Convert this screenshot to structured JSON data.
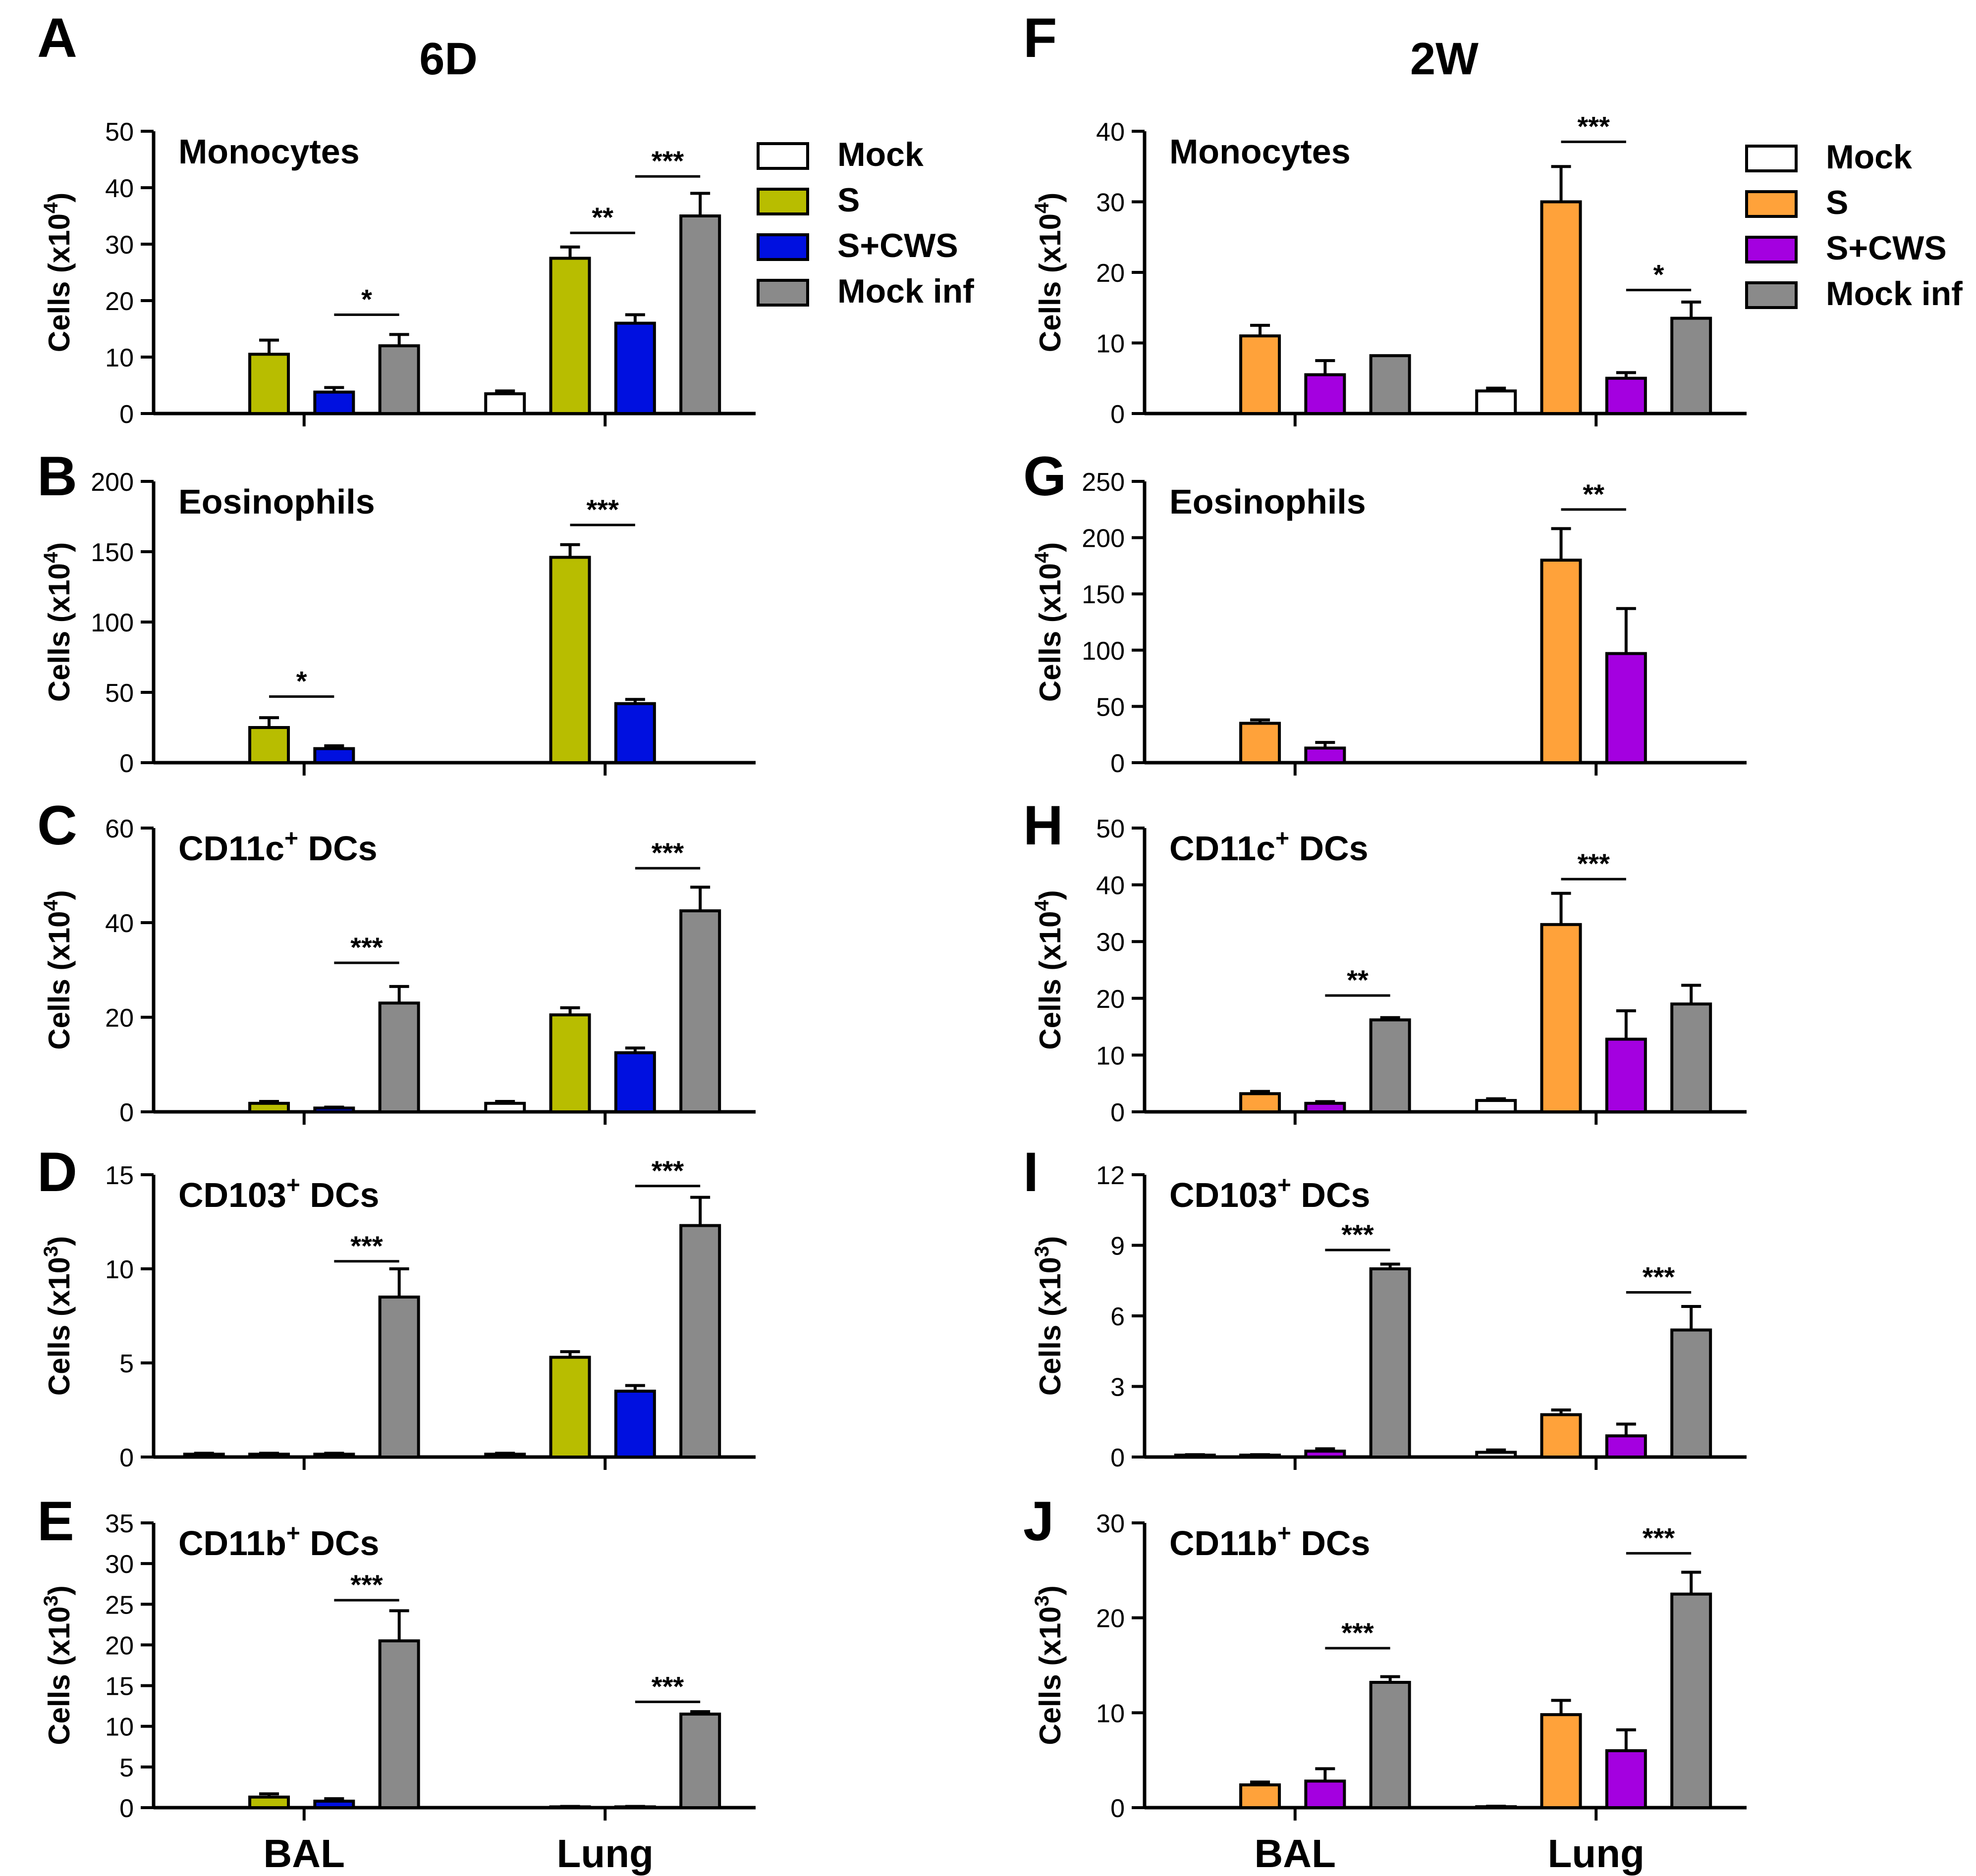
{
  "figure": {
    "left_column_title": "6D",
    "right_column_title": "2W"
  },
  "legend_left": {
    "entries": [
      {
        "label": "Mock",
        "color": "#ffffff"
      },
      {
        "label": "S",
        "color": "#b8bd00"
      },
      {
        "label": "S+CWS",
        "color": "#0010e0"
      },
      {
        "label": "Mock inf",
        "color": "#8a8a8a"
      }
    ]
  },
  "legend_right": {
    "entries": [
      {
        "label": "Mock",
        "color": "#ffffff"
      },
      {
        "label": "S",
        "color": "#ffa23a"
      },
      {
        "label": "S+CWS",
        "color": "#a400e0"
      },
      {
        "label": "Mock inf",
        "color": "#8a8a8a"
      }
    ]
  },
  "chart_data": [
    {
      "panel": "A",
      "type": "bar",
      "title": "Monocytes",
      "ylabel_base": "Cells (x10",
      "ylabel_exp": "4",
      "ylabel_close": ")",
      "ylim": [
        0,
        50
      ],
      "yticks": [
        "0",
        "10",
        "20",
        "30",
        "40",
        "50"
      ],
      "categories": [
        "BAL",
        "Lung"
      ],
      "show_xlabels": false,
      "colors": [
        "#ffffff",
        "#b8bd00",
        "#0010e0",
        "#8a8a8a"
      ],
      "series": [
        {
          "name": "Mock",
          "values": [
            0,
            3.5
          ],
          "errors": [
            0,
            0.5
          ]
        },
        {
          "name": "S",
          "values": [
            10.5,
            27.5
          ],
          "errors": [
            2.5,
            2
          ]
        },
        {
          "name": "S+CWS",
          "values": [
            3.8,
            16
          ],
          "errors": [
            0.8,
            1.5
          ]
        },
        {
          "name": "Mock inf",
          "values": [
            12,
            35
          ],
          "errors": [
            2,
            4
          ]
        }
      ],
      "significance": [
        {
          "label": "*",
          "cat": 0,
          "from": 2,
          "to": 3,
          "y": 17.5
        },
        {
          "label": "**",
          "cat": 1,
          "from": 1,
          "to": 2,
          "y": 32
        },
        {
          "label": "***",
          "cat": 1,
          "from": 2,
          "to": 3,
          "y": 42
        }
      ]
    },
    {
      "panel": "B",
      "type": "bar",
      "title": "Eosinophils",
      "ylabel_base": "Cells (x10",
      "ylabel_exp": "4",
      "ylabel_close": ")",
      "ylim": [
        0,
        200
      ],
      "yticks": [
        "0",
        "50",
        "100",
        "150",
        "200"
      ],
      "categories": [
        "BAL",
        "Lung"
      ],
      "show_xlabels": false,
      "colors": [
        "#ffffff",
        "#b8bd00",
        "#0010e0",
        "#8a8a8a"
      ],
      "series": [
        {
          "name": "Mock",
          "values": [
            0,
            0
          ],
          "errors": [
            0,
            0
          ]
        },
        {
          "name": "S",
          "values": [
            25,
            146
          ],
          "errors": [
            7,
            9
          ]
        },
        {
          "name": "S+CWS",
          "values": [
            10,
            42
          ],
          "errors": [
            2,
            3
          ]
        },
        {
          "name": "Mock inf",
          "values": [
            0,
            0
          ],
          "errors": [
            0,
            0
          ]
        }
      ],
      "significance": [
        {
          "label": "*",
          "cat": 0,
          "from": 1,
          "to": 2,
          "y": 47
        },
        {
          "label": "***",
          "cat": 1,
          "from": 1,
          "to": 2,
          "y": 169
        }
      ]
    },
    {
      "panel": "C",
      "type": "bar",
      "title": "CD11c",
      "title_sup": "+",
      "title_rest": " DCs",
      "ylabel_base": "Cells (x10",
      "ylabel_exp": "4",
      "ylabel_close": ")",
      "ylim": [
        0,
        60
      ],
      "yticks": [
        "0",
        "20",
        "40",
        "60"
      ],
      "categories": [
        "BAL",
        "Lung"
      ],
      "show_xlabels": false,
      "colors": [
        "#ffffff",
        "#b8bd00",
        "#0010e0",
        "#8a8a8a"
      ],
      "series": [
        {
          "name": "Mock",
          "values": [
            0,
            1.8
          ],
          "errors": [
            0,
            0.4
          ]
        },
        {
          "name": "S",
          "values": [
            1.8,
            20.5
          ],
          "errors": [
            0.4,
            1.5
          ]
        },
        {
          "name": "S+CWS",
          "values": [
            0.8,
            12.5
          ],
          "errors": [
            0.2,
            1
          ]
        },
        {
          "name": "Mock inf",
          "values": [
            23,
            42.5
          ],
          "errors": [
            3.5,
            5
          ]
        }
      ],
      "significance": [
        {
          "label": "***",
          "cat": 0,
          "from": 2,
          "to": 3,
          "y": 31.5
        },
        {
          "label": "***",
          "cat": 1,
          "from": 2,
          "to": 3,
          "y": 51.5
        }
      ]
    },
    {
      "panel": "D",
      "type": "bar",
      "title": "CD103",
      "title_sup": "+",
      "title_rest": " DCs",
      "ylabel_base": "Cells (x10",
      "ylabel_exp": "3",
      "ylabel_close": ")",
      "ylim": [
        0,
        15
      ],
      "yticks": [
        "0",
        "5",
        "10",
        "15"
      ],
      "categories": [
        "BAL",
        "Lung"
      ],
      "show_xlabels": false,
      "colors": [
        "#ffffff",
        "#b8bd00",
        "#0010e0",
        "#8a8a8a"
      ],
      "series": [
        {
          "name": "Mock",
          "values": [
            0.15,
            0.15
          ],
          "errors": [
            0.05,
            0.05
          ]
        },
        {
          "name": "S",
          "values": [
            0.15,
            5.3
          ],
          "errors": [
            0.05,
            0.3
          ]
        },
        {
          "name": "S+CWS",
          "values": [
            0.15,
            3.5
          ],
          "errors": [
            0.05,
            0.3
          ]
        },
        {
          "name": "Mock inf",
          "values": [
            8.5,
            12.3
          ],
          "errors": [
            1.5,
            1.5
          ]
        }
      ],
      "significance": [
        {
          "label": "***",
          "cat": 0,
          "from": 2,
          "to": 3,
          "y": 10.4
        },
        {
          "label": "***",
          "cat": 1,
          "from": 2,
          "to": 3,
          "y": 14.4
        }
      ]
    },
    {
      "panel": "E",
      "type": "bar",
      "title": "CD11b",
      "title_sup": "+",
      "title_rest": " DCs",
      "ylabel_base": "Cells (x10",
      "ylabel_exp": "3",
      "ylabel_close": ")",
      "ylim": [
        0,
        35
      ],
      "yticks": [
        "0",
        "5",
        "10",
        "15",
        "20",
        "25",
        "30",
        "35"
      ],
      "categories": [
        "BAL",
        "Lung"
      ],
      "show_xlabels": true,
      "colors": [
        "#ffffff",
        "#b8bd00",
        "#0010e0",
        "#8a8a8a"
      ],
      "series": [
        {
          "name": "Mock",
          "values": [
            0,
            0
          ],
          "errors": [
            0,
            0
          ]
        },
        {
          "name": "S",
          "values": [
            1.3,
            0.1
          ],
          "errors": [
            0.4,
            0.05
          ]
        },
        {
          "name": "S+CWS",
          "values": [
            0.8,
            0.1
          ],
          "errors": [
            0.3,
            0.05
          ]
        },
        {
          "name": "Mock inf",
          "values": [
            20.5,
            11.5
          ],
          "errors": [
            3.7,
            0.3
          ]
        }
      ],
      "significance": [
        {
          "label": "***",
          "cat": 0,
          "from": 2,
          "to": 3,
          "y": 25.5
        },
        {
          "label": "***",
          "cat": 1,
          "from": 2,
          "to": 3,
          "y": 13
        }
      ]
    },
    {
      "panel": "F",
      "type": "bar",
      "title": "Monocytes",
      "ylabel_base": "Cells (x10",
      "ylabel_exp": "4",
      "ylabel_close": ")",
      "ylim": [
        0,
        40
      ],
      "yticks": [
        "0",
        "10",
        "20",
        "30",
        "40"
      ],
      "categories": [
        "BAL",
        "Lung"
      ],
      "show_xlabels": false,
      "colors": [
        "#ffffff",
        "#ffa23a",
        "#a400e0",
        "#8a8a8a"
      ],
      "series": [
        {
          "name": "Mock",
          "values": [
            0,
            3.2
          ],
          "errors": [
            0,
            0.4
          ]
        },
        {
          "name": "S",
          "values": [
            11,
            30
          ],
          "errors": [
            1.5,
            5
          ]
        },
        {
          "name": "S+CWS",
          "values": [
            5.5,
            5
          ],
          "errors": [
            2,
            0.8
          ]
        },
        {
          "name": "Mock inf",
          "values": [
            8.2,
            13.5
          ],
          "errors": [
            0,
            2.3
          ]
        }
      ],
      "significance": [
        {
          "label": "***",
          "cat": 1,
          "from": 1,
          "to": 2,
          "y": 38.5
        },
        {
          "label": "*",
          "cat": 1,
          "from": 2,
          "to": 3,
          "y": 17.5
        }
      ]
    },
    {
      "panel": "G",
      "type": "bar",
      "title": "Eosinophils",
      "ylabel_base": "Cells (x10",
      "ylabel_exp": "4",
      "ylabel_close": ")",
      "ylim": [
        0,
        250
      ],
      "yticks": [
        "0",
        "50",
        "100",
        "150",
        "200",
        "250"
      ],
      "categories": [
        "BAL",
        "Lung"
      ],
      "show_xlabels": false,
      "colors": [
        "#ffffff",
        "#ffa23a",
        "#a400e0",
        "#8a8a8a"
      ],
      "series": [
        {
          "name": "Mock",
          "values": [
            0,
            0
          ],
          "errors": [
            0,
            0
          ]
        },
        {
          "name": "S",
          "values": [
            35,
            180
          ],
          "errors": [
            3,
            28
          ]
        },
        {
          "name": "S+CWS",
          "values": [
            13,
            97
          ],
          "errors": [
            5,
            40
          ]
        },
        {
          "name": "Mock inf",
          "values": [
            0,
            0
          ],
          "errors": [
            0,
            0
          ]
        }
      ],
      "significance": [
        {
          "label": "**",
          "cat": 1,
          "from": 1,
          "to": 2,
          "y": 225
        }
      ]
    },
    {
      "panel": "H",
      "type": "bar",
      "title": "CD11c",
      "title_sup": "+",
      "title_rest": " DCs",
      "ylabel_base": "Cells (x10",
      "ylabel_exp": "4",
      "ylabel_close": ")",
      "ylim": [
        0,
        50
      ],
      "yticks": [
        "0",
        "10",
        "20",
        "30",
        "40",
        "50"
      ],
      "categories": [
        "BAL",
        "Lung"
      ],
      "show_xlabels": false,
      "colors": [
        "#ffffff",
        "#ffa23a",
        "#a400e0",
        "#8a8a8a"
      ],
      "series": [
        {
          "name": "Mock",
          "values": [
            0,
            2
          ],
          "errors": [
            0,
            0.3
          ]
        },
        {
          "name": "S",
          "values": [
            3.2,
            33
          ],
          "errors": [
            0.4,
            5.5
          ]
        },
        {
          "name": "S+CWS",
          "values": [
            1.5,
            12.8
          ],
          "errors": [
            0.3,
            5
          ]
        },
        {
          "name": "Mock inf",
          "values": [
            16.2,
            19
          ],
          "errors": [
            0.4,
            3.3
          ]
        }
      ],
      "significance": [
        {
          "label": "**",
          "cat": 0,
          "from": 2,
          "to": 3,
          "y": 20.5
        },
        {
          "label": "***",
          "cat": 1,
          "from": 1,
          "to": 2,
          "y": 41
        }
      ]
    },
    {
      "panel": "I",
      "type": "bar",
      "title": "CD103",
      "title_sup": "+",
      "title_rest": " DCs",
      "ylabel_base": "Cells (x10",
      "ylabel_exp": "3",
      "ylabel_close": ")",
      "ylim": [
        0,
        12
      ],
      "yticks": [
        "0",
        "3",
        "6",
        "9",
        "12"
      ],
      "categories": [
        "BAL",
        "Lung"
      ],
      "show_xlabels": false,
      "colors": [
        "#ffffff",
        "#ffa23a",
        "#a400e0",
        "#8a8a8a"
      ],
      "series": [
        {
          "name": "Mock",
          "values": [
            0.08,
            0.2
          ],
          "errors": [
            0.02,
            0.1
          ]
        },
        {
          "name": "S",
          "values": [
            0.08,
            1.8
          ],
          "errors": [
            0.02,
            0.2
          ]
        },
        {
          "name": "S+CWS",
          "values": [
            0.25,
            0.9
          ],
          "errors": [
            0.1,
            0.5
          ]
        },
        {
          "name": "Mock inf",
          "values": [
            8,
            5.4
          ],
          "errors": [
            0.2,
            1
          ]
        }
      ],
      "significance": [
        {
          "label": "***",
          "cat": 0,
          "from": 2,
          "to": 3,
          "y": 8.8
        },
        {
          "label": "***",
          "cat": 1,
          "from": 2,
          "to": 3,
          "y": 7
        }
      ]
    },
    {
      "panel": "J",
      "type": "bar",
      "title": "CD11b",
      "title_sup": "+",
      "title_rest": " DCs",
      "ylabel_base": "Cells (x10",
      "ylabel_exp": "3",
      "ylabel_close": ")",
      "ylim": [
        0,
        30
      ],
      "yticks": [
        "0",
        "10",
        "20",
        "30"
      ],
      "categories": [
        "BAL",
        "Lung"
      ],
      "show_xlabels": true,
      "colors": [
        "#ffffff",
        "#ffa23a",
        "#a400e0",
        "#8a8a8a"
      ],
      "series": [
        {
          "name": "Mock",
          "values": [
            0,
            0.1
          ],
          "errors": [
            0,
            0.05
          ]
        },
        {
          "name": "S",
          "values": [
            2.4,
            9.8
          ],
          "errors": [
            0.3,
            1.5
          ]
        },
        {
          "name": "S+CWS",
          "values": [
            2.8,
            6
          ],
          "errors": [
            1.3,
            2.2
          ]
        },
        {
          "name": "Mock inf",
          "values": [
            13.2,
            22.5
          ],
          "errors": [
            0.6,
            2.3
          ]
        }
      ],
      "significance": [
        {
          "label": "***",
          "cat": 0,
          "from": 2,
          "to": 3,
          "y": 16.8
        },
        {
          "label": "***",
          "cat": 1,
          "from": 2,
          "to": 3,
          "y": 26.8
        }
      ]
    }
  ]
}
